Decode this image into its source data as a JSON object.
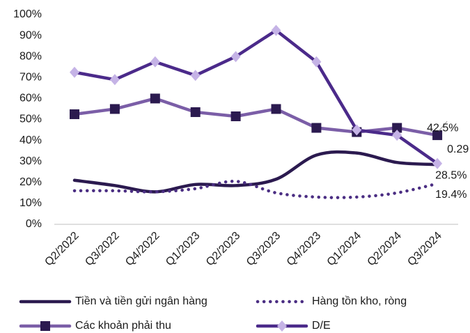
{
  "chart_data": {
    "type": "line",
    "categories": [
      "Q2/2022",
      "Q3/2022",
      "Q4/2022",
      "Q1/2023",
      "Q2/2023",
      "Q3/2023",
      "Q4/2023",
      "Q1/2024",
      "Q2/2024",
      "Q3/2024"
    ],
    "ylim": [
      0,
      100
    ],
    "yticks": [
      {
        "value": 0,
        "label": "0%"
      },
      {
        "value": 10,
        "label": "10%"
      },
      {
        "value": 20,
        "label": "20%"
      },
      {
        "value": 30,
        "label": "30%"
      },
      {
        "value": 40,
        "label": "40%"
      },
      {
        "value": 50,
        "label": "50%"
      },
      {
        "value": 60,
        "label": "60%"
      },
      {
        "value": 70,
        "label": "70%"
      },
      {
        "value": 80,
        "label": "80%"
      },
      {
        "value": 90,
        "label": "90%"
      },
      {
        "value": 100,
        "label": "100%"
      }
    ],
    "grid": false,
    "legend": "bottom",
    "series": [
      {
        "name": "Tiền và tiền gửi ngân hàng",
        "color": "#2b1a4f",
        "style": "solid",
        "smooth": true,
        "marker": "none",
        "values": [
          21,
          18.5,
          15.5,
          19,
          18.5,
          21.5,
          33,
          34,
          29.5,
          28.5
        ],
        "value_labels": [
          null,
          null,
          null,
          null,
          null,
          null,
          null,
          null,
          null,
          "28.5%"
        ]
      },
      {
        "name": "Hàng tồn kho, ròng",
        "color": "#4b2e83",
        "style": "dotted",
        "smooth": true,
        "marker": "none",
        "values": [
          16,
          16,
          15.5,
          17,
          20.5,
          15,
          13,
          13,
          15,
          19.4
        ],
        "value_labels": [
          null,
          null,
          null,
          null,
          null,
          null,
          null,
          null,
          null,
          "19.4%"
        ]
      },
      {
        "name": "Các khoản phải thu",
        "color": "#7b5ea7",
        "style": "solid",
        "smooth": false,
        "marker": "square",
        "marker_color": "#2b1a4f",
        "values": [
          52.5,
          55,
          60,
          53.5,
          51.5,
          55,
          46,
          44,
          46,
          42.5
        ],
        "value_labels": [
          null,
          null,
          null,
          null,
          null,
          null,
          null,
          null,
          null,
          "42.5%"
        ]
      },
      {
        "name": "D/E",
        "color": "#4b2a8a",
        "style": "solid",
        "smooth": false,
        "marker": "diamond",
        "marker_color": "#c5b3e6",
        "values": [
          72.5,
          69,
          77.5,
          71,
          80,
          92.5,
          77.5,
          45,
          42.5,
          29
        ],
        "value_labels": [
          null,
          null,
          null,
          null,
          null,
          null,
          null,
          null,
          null,
          "0.29"
        ]
      }
    ]
  }
}
